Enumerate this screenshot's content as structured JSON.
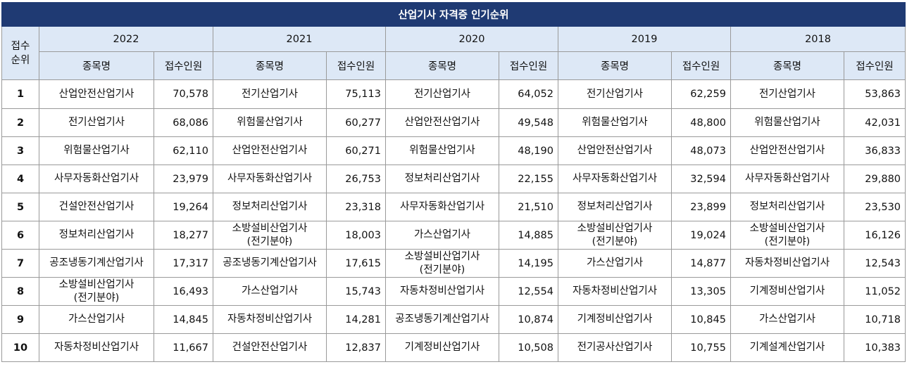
{
  "title": "산업기사 자격증 인기순위",
  "rank_header": [
    "접수",
    "순위"
  ],
  "name_header": "종목명",
  "count_header": "접수인원",
  "years": [
    "2022",
    "2021",
    "2020",
    "2019",
    "2018"
  ],
  "rows": [
    {
      "rank": "1",
      "cells": [
        [
          "산업안전산업기사",
          "",
          "70,578"
        ],
        [
          "전기산업기사",
          "",
          "75,113"
        ],
        [
          "전기산업기사",
          "",
          "64,052"
        ],
        [
          "전기산업기사",
          "",
          "62,259"
        ],
        [
          "전기산업기사",
          "",
          "53,863"
        ]
      ]
    },
    {
      "rank": "2",
      "cells": [
        [
          "전기산업기사",
          "",
          "68,086"
        ],
        [
          "위험물산업기사",
          "",
          "60,277"
        ],
        [
          "산업안전산업기사",
          "",
          "49,548"
        ],
        [
          "위험물산업기사",
          "",
          "48,800"
        ],
        [
          "위험물산업기사",
          "",
          "42,031"
        ]
      ]
    },
    {
      "rank": "3",
      "cells": [
        [
          "위험물산업기사",
          "",
          "62,110"
        ],
        [
          "산업안전산업기사",
          "",
          "60,271"
        ],
        [
          "위험물산업기사",
          "",
          "48,190"
        ],
        [
          "산업안전산업기사",
          "",
          "48,073"
        ],
        [
          "산업안전산업기사",
          "",
          "36,833"
        ]
      ]
    },
    {
      "rank": "4",
      "cells": [
        [
          "사무자동화산업기사",
          "",
          "23,979"
        ],
        [
          "사무자동화산업기사",
          "",
          "26,753"
        ],
        [
          "정보처리산업기사",
          "",
          "22,155"
        ],
        [
          "사무자동화산업기사",
          "",
          "32,594"
        ],
        [
          "사무자동화산업기사",
          "",
          "29,880"
        ]
      ]
    },
    {
      "rank": "5",
      "cells": [
        [
          "건설안전산업기사",
          "",
          "19,264"
        ],
        [
          "정보처리산업기사",
          "",
          "23,318"
        ],
        [
          "사무자동화산업기사",
          "",
          "21,510"
        ],
        [
          "정보처리산업기사",
          "",
          "23,899"
        ],
        [
          "정보처리산업기사",
          "",
          "23,530"
        ]
      ]
    },
    {
      "rank": "6",
      "cells": [
        [
          "정보처리산업기사",
          "",
          "18,277"
        ],
        [
          "소방설비산업기사",
          "(전기분야)",
          "18,003"
        ],
        [
          "가스산업기사",
          "",
          "14,885"
        ],
        [
          "소방설비산업기사",
          "(전기분야)",
          "19,024"
        ],
        [
          "소방설비산업기사",
          "(전기분야)",
          "16,126"
        ]
      ]
    },
    {
      "rank": "7",
      "cells": [
        [
          "공조냉동기계산업기사",
          "",
          "17,317"
        ],
        [
          "공조냉동기계산업기사",
          "",
          "17,615"
        ],
        [
          "소방설비산업기사",
          "(전기분야)",
          "14,195"
        ],
        [
          "가스산업기사",
          "",
          "14,877"
        ],
        [
          "자동차정비산업기사",
          "",
          "12,543"
        ]
      ]
    },
    {
      "rank": "8",
      "cells": [
        [
          "소방설비산업기사",
          "(전기분야)",
          "16,493"
        ],
        [
          "가스산업기사",
          "",
          "15,743"
        ],
        [
          "자동차정비산업기사",
          "",
          "12,554"
        ],
        [
          "자동차정비산업기사",
          "",
          "13,305"
        ],
        [
          "기계정비산업기사",
          "",
          "11,052"
        ]
      ]
    },
    {
      "rank": "9",
      "cells": [
        [
          "가스산업기사",
          "",
          "14,845"
        ],
        [
          "자동차정비산업기사",
          "",
          "14,281"
        ],
        [
          "공조냉동기계산업기사",
          "",
          "10,874"
        ],
        [
          "기계정비산업기사",
          "",
          "10,845"
        ],
        [
          "가스산업기사",
          "",
          "10,718"
        ]
      ]
    },
    {
      "rank": "10",
      "cells": [
        [
          "자동차정비산업기사",
          "",
          "11,667"
        ],
        [
          "건설안전산업기사",
          "",
          "12,837"
        ],
        [
          "기계정비산업기사",
          "",
          "10,508"
        ],
        [
          "전기공사산업기사",
          "",
          "10,755"
        ],
        [
          "기계설계산업기사",
          "",
          "10,383"
        ]
      ]
    }
  ]
}
